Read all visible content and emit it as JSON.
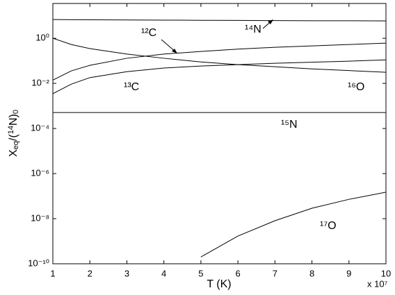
{
  "chart_data": {
    "type": "line",
    "xlabel": "T (K)",
    "x_multiplier": "x 10⁷",
    "ylabel": [
      "X",
      "eq",
      "/(",
      "14",
      "N)",
      "0"
    ],
    "log_y": true,
    "x": [
      1,
      1.5,
      2,
      3,
      4,
      5,
      6,
      7,
      8,
      9,
      10
    ],
    "xlim": [
      1,
      10
    ],
    "xticks": [
      1,
      2,
      3,
      4,
      5,
      6,
      7,
      8,
      9,
      10
    ],
    "ylim": [
      1e-10,
      35
    ],
    "yticks": [
      {
        "value": 1e-10,
        "label": "10⁻¹⁰"
      },
      {
        "value": 1e-08,
        "label": "10⁻⁸"
      },
      {
        "value": 1e-06,
        "label": "10⁻⁶"
      },
      {
        "value": 0.0001,
        "label": "10⁻⁴"
      },
      {
        "value": 0.01,
        "label": "10⁻²"
      },
      {
        "value": 1,
        "label": "10⁰"
      }
    ],
    "series": [
      {
        "name": "¹⁴N",
        "color": "#000000",
        "values": [
          6.8,
          6.7,
          6.6,
          6.5,
          6.4,
          6.3,
          6.2,
          6.1,
          6.0,
          6.0,
          5.9
        ]
      },
      {
        "name": "¹²C",
        "color": "#000000",
        "values": [
          0.014,
          0.036,
          0.063,
          0.13,
          0.2,
          0.26,
          0.33,
          0.4,
          0.46,
          0.53,
          0.61
        ]
      },
      {
        "name": "¹³C",
        "color": "#000000",
        "values": [
          0.0035,
          0.0093,
          0.018,
          0.033,
          0.048,
          0.059,
          0.068,
          0.078,
          0.087,
          0.097,
          0.11
        ]
      },
      {
        "name": "¹⁶O",
        "color": "#000000",
        "values": [
          1.0,
          0.53,
          0.35,
          0.2,
          0.13,
          0.089,
          0.068,
          0.055,
          0.044,
          0.037,
          0.031
        ]
      },
      {
        "name": "¹⁵N",
        "color": "#000000",
        "values": [
          0.00051,
          0.00051,
          0.00051,
          0.00051,
          0.00051,
          0.00051,
          0.00051,
          0.00051,
          0.00051,
          0.00051,
          0.00051
        ]
      },
      {
        "name": "¹⁷O",
        "color": "#000000",
        "values": [
          null,
          null,
          null,
          null,
          null,
          2e-10,
          1.7e-09,
          8.1e-09,
          2.9e-08,
          7.2e-08,
          1.5e-07
        ]
      }
    ]
  }
}
